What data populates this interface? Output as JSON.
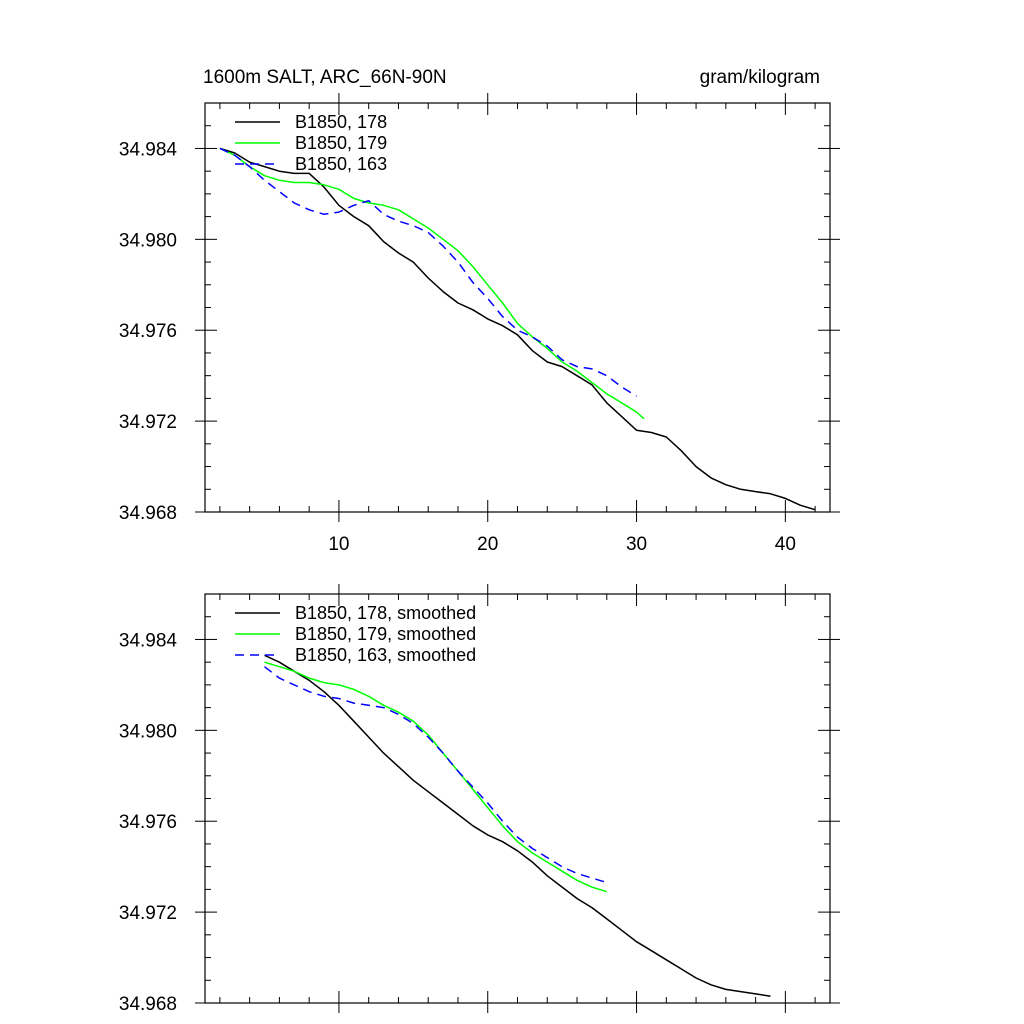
{
  "chart_data": [
    {
      "type": "line",
      "title": "1600m SALT, ARC_66N-90N",
      "units": "gram/kilogram",
      "xlim": [
        1,
        43
      ],
      "ylim": [
        34.968,
        34.986
      ],
      "xticks": [
        10,
        20,
        30,
        40
      ],
      "yticks": [
        34.968,
        34.972,
        34.976,
        34.98,
        34.984
      ],
      "series": [
        {
          "name": "B1850, 178",
          "color": "#000000",
          "dash": "",
          "x": [
            2,
            3,
            4,
            5,
            6,
            7,
            8,
            9,
            10,
            11,
            12,
            13,
            14,
            15,
            16,
            17,
            18,
            19,
            20,
            21,
            22,
            23,
            24,
            25,
            26,
            27,
            28,
            29,
            30,
            31,
            32,
            33,
            34,
            35,
            36,
            37,
            38,
            39,
            40,
            41,
            42
          ],
          "y": [
            34.984,
            34.9838,
            34.9834,
            34.9832,
            34.983,
            34.9829,
            34.9829,
            34.9823,
            34.9815,
            34.981,
            34.9806,
            34.9799,
            34.9794,
            34.979,
            34.9783,
            34.9777,
            34.9772,
            34.9769,
            34.9765,
            34.9762,
            34.9758,
            34.9751,
            34.9746,
            34.9744,
            34.974,
            34.9736,
            34.9728,
            34.9722,
            34.9716,
            34.9715,
            34.9713,
            34.9707,
            34.97,
            34.9695,
            34.9692,
            34.969,
            34.9689,
            34.9688,
            34.9686,
            34.9683,
            34.9681
          ]
        },
        {
          "name": "B1850, 179",
          "color": "#00ff00",
          "dash": "",
          "x": [
            2,
            3,
            4,
            5,
            6,
            7,
            8,
            9,
            10,
            11,
            12,
            13,
            14,
            15,
            16,
            17,
            18,
            19,
            20,
            21,
            22,
            23,
            24,
            25,
            26,
            27,
            28,
            29,
            30,
            30.5
          ],
          "y": [
            34.984,
            34.9837,
            34.9832,
            34.9828,
            34.9826,
            34.9825,
            34.9825,
            34.9824,
            34.9822,
            34.9818,
            34.9816,
            34.9815,
            34.9813,
            34.9809,
            34.9805,
            34.98,
            34.9795,
            34.9788,
            34.978,
            34.9772,
            34.9763,
            34.9757,
            34.9752,
            34.9746,
            34.9742,
            34.9737,
            34.9732,
            34.9728,
            34.9724,
            34.9721
          ]
        },
        {
          "name": "B1850, 163",
          "color": "#0000ff",
          "dash": "9,6",
          "x": [
            2,
            3,
            4,
            5,
            6,
            7,
            8,
            9,
            10,
            11,
            12,
            13,
            14,
            15,
            16,
            17,
            18,
            19,
            20,
            21,
            22,
            23,
            24,
            25,
            26,
            27,
            28,
            29,
            30
          ],
          "y": [
            34.984,
            34.9837,
            34.9832,
            34.9826,
            34.9821,
            34.9816,
            34.9813,
            34.9811,
            34.9812,
            34.9815,
            34.9817,
            34.9811,
            34.9808,
            34.9806,
            34.9803,
            34.9797,
            34.979,
            34.9781,
            34.9774,
            34.9766,
            34.976,
            34.9757,
            34.9753,
            34.9747,
            34.9744,
            34.9743,
            34.974,
            34.9735,
            34.9731
          ]
        }
      ]
    },
    {
      "type": "line",
      "xlim": [
        1,
        43
      ],
      "ylim": [
        34.968,
        34.986
      ],
      "xticks": [
        10,
        20,
        30,
        40
      ],
      "yticks": [
        34.968,
        34.972,
        34.976,
        34.98,
        34.984
      ],
      "series": [
        {
          "name": "B1850, 178, smoothed",
          "color": "#000000",
          "dash": "",
          "x": [
            5,
            6,
            7,
            8,
            9,
            10,
            11,
            12,
            13,
            14,
            15,
            16,
            17,
            18,
            19,
            20,
            21,
            22,
            23,
            24,
            25,
            26,
            27,
            28,
            29,
            30,
            31,
            32,
            33,
            34,
            35,
            36,
            37,
            38,
            39
          ],
          "y": [
            34.9833,
            34.983,
            34.9826,
            34.9822,
            34.9817,
            34.9811,
            34.9804,
            34.9797,
            34.979,
            34.9784,
            34.9778,
            34.9773,
            34.9768,
            34.9763,
            34.9758,
            34.9754,
            34.9751,
            34.9747,
            34.9742,
            34.9736,
            34.9731,
            34.9726,
            34.9722,
            34.9717,
            34.9712,
            34.9707,
            34.9703,
            34.9699,
            34.9695,
            34.9691,
            34.9688,
            34.9686,
            34.9685,
            34.9684,
            34.9683
          ]
        },
        {
          "name": "B1850, 179, smoothed",
          "color": "#00ff00",
          "dash": "",
          "x": [
            5,
            6,
            7,
            8,
            9,
            10,
            11,
            12,
            13,
            14,
            15,
            16,
            17,
            18,
            19,
            20,
            21,
            22,
            23,
            24,
            25,
            26,
            27,
            28
          ],
          "y": [
            34.983,
            34.9828,
            34.9826,
            34.9823,
            34.9821,
            34.982,
            34.9818,
            34.9815,
            34.9811,
            34.9808,
            34.9804,
            34.9798,
            34.979,
            34.9782,
            34.9774,
            34.9766,
            34.9758,
            34.9751,
            34.9746,
            34.9742,
            34.9738,
            34.9734,
            34.9731,
            34.9729
          ]
        },
        {
          "name": "B1850, 163, smoothed",
          "color": "#0000ff",
          "dash": "9,6",
          "x": [
            5,
            6,
            7,
            8,
            9,
            10,
            11,
            12,
            13,
            14,
            15,
            16,
            17,
            18,
            19,
            20,
            21,
            22,
            23,
            24,
            25,
            26,
            27,
            28
          ],
          "y": [
            34.9828,
            34.9823,
            34.982,
            34.9817,
            34.9815,
            34.9814,
            34.9812,
            34.9811,
            34.981,
            34.9807,
            34.9803,
            34.9797,
            34.979,
            34.9782,
            34.9775,
            34.9768,
            34.976,
            34.9753,
            34.9748,
            34.9744,
            34.974,
            34.9737,
            34.9735,
            34.9733
          ]
        }
      ]
    }
  ]
}
